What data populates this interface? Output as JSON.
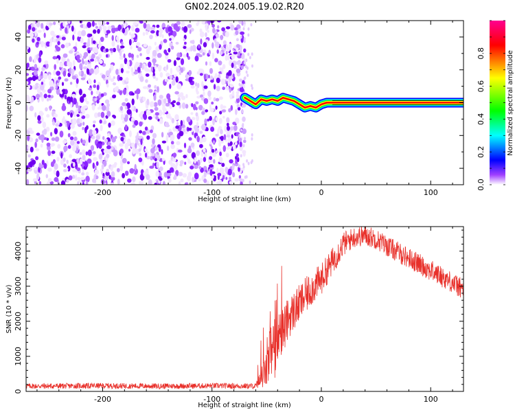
{
  "title": "GN02.2024.005.19.02.R20",
  "chart_data": [
    {
      "type": "heatmap",
      "xlabel": "Height of straight line (km)",
      "ylabel": "Frequency (Hz)",
      "xlim": [
        -270,
        130
      ],
      "ylim": [
        -50,
        50
      ],
      "xticks": [
        -200,
        -100,
        0,
        100
      ],
      "yticks": [
        -40,
        -20,
        0,
        20,
        40
      ],
      "noise_region_x": [
        -270,
        -70
      ],
      "signal_track": {
        "x": [
          -70,
          -65,
          -60,
          -55,
          -50,
          -45,
          -40,
          -35,
          -30,
          -25,
          -20,
          -15,
          -10,
          -5,
          0,
          5,
          10,
          130
        ],
        "y": [
          3,
          1,
          -1,
          2,
          1,
          2,
          1,
          3,
          2,
          1,
          -1,
          -3,
          -2,
          -3,
          -1,
          0,
          0,
          0
        ]
      },
      "colorbar": {
        "label": "Normalized spectral amplitude",
        "range": [
          0,
          1
        ],
        "ticks": [
          "0.0",
          "0.2",
          "0.4",
          "0.6",
          "0.8"
        ],
        "colors": [
          "#ffffff",
          "#8000ff",
          "#0000ff",
          "#00ffff",
          "#00ff00",
          "#ffff00",
          "#ff0000",
          "#ff0080"
        ]
      }
    },
    {
      "type": "line",
      "xlabel": "Height of straight line (km)",
      "ylabel": "SNR (10 * v/v)",
      "xlim": [
        -270,
        130
      ],
      "ylim": [
        0,
        4700
      ],
      "xticks": [
        -200,
        -100,
        0,
        100
      ],
      "yticks": [
        0,
        1000,
        2000,
        3000,
        4000
      ],
      "color": "#e8302a",
      "x": [
        -270,
        -200,
        -150,
        -100,
        -60,
        -50,
        -45,
        -42,
        -40,
        -35,
        -30,
        -20,
        -10,
        0,
        10,
        20,
        30,
        40,
        50,
        60,
        80,
        100,
        120,
        130
      ],
      "y": [
        150,
        160,
        150,
        160,
        150,
        600,
        1300,
        800,
        1500,
        1700,
        2100,
        2500,
        2900,
        3200,
        3700,
        4200,
        4400,
        4450,
        4350,
        4150,
        3800,
        3450,
        3100,
        2900
      ],
      "noise_amplitude": [
        80,
        80,
        80,
        80,
        80,
        500,
        900,
        900,
        700,
        700,
        600,
        550,
        500,
        450,
        400,
        350,
        300,
        300,
        300,
        300,
        300,
        300,
        300,
        300
      ]
    }
  ]
}
